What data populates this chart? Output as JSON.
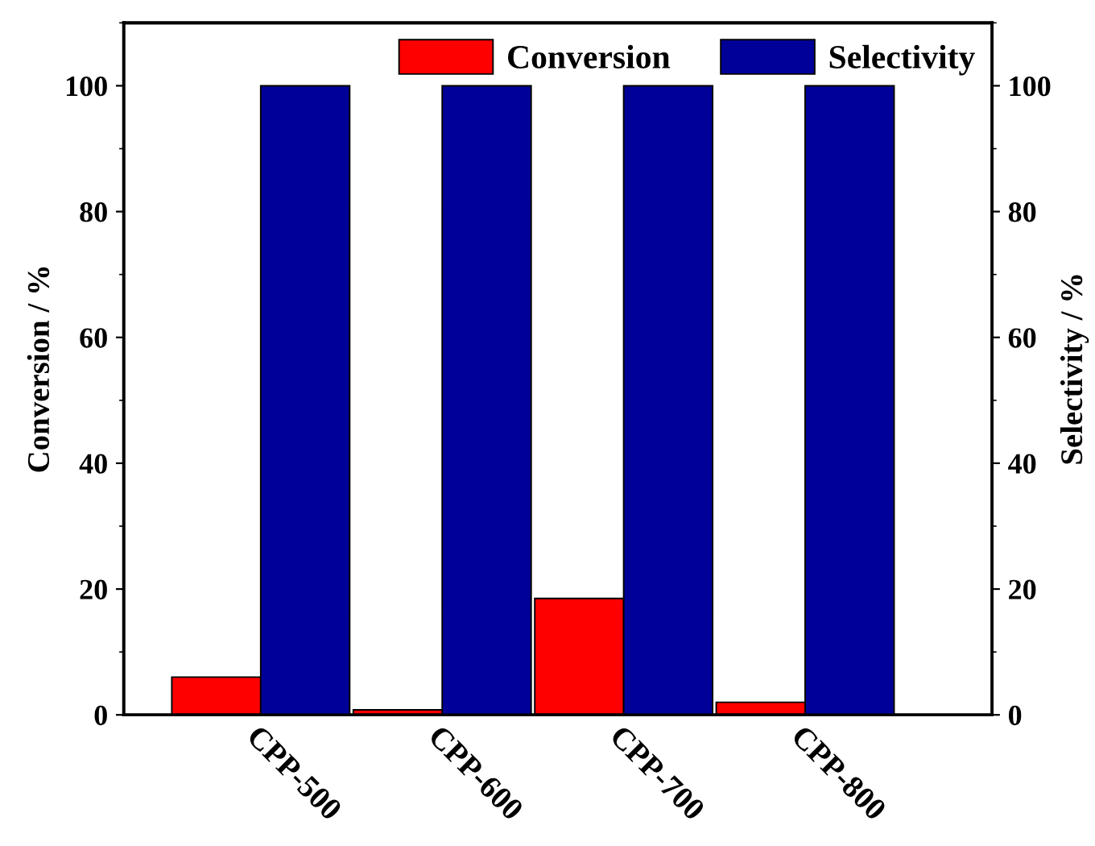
{
  "chart_data": {
    "type": "bar",
    "categories": [
      "CPP-500",
      "CPP-600",
      "CPP-700",
      "CPP-800"
    ],
    "ylabel": "Conversion / %",
    "y2label": "Selectivity / %",
    "series": [
      {
        "name": "Conversion",
        "color": "#ff0000",
        "values": [
          6,
          0.8,
          18.5,
          2
        ]
      },
      {
        "name": "Selectivity",
        "color": "#000099",
        "values": [
          100,
          100,
          100,
          100
        ],
        "axis": "y2"
      }
    ],
    "ylim": [
      0,
      110
    ],
    "yticks": [
      0,
      20,
      40,
      60,
      80,
      100
    ],
    "y2lim": [
      0,
      110
    ],
    "y2ticks": [
      0,
      20,
      40,
      60,
      80,
      100
    ],
    "legend": "top right",
    "grid": false
  }
}
